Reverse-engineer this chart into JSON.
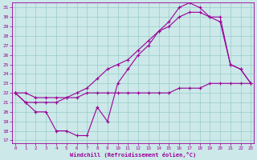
{
  "xlabel": "Windchill (Refroidissement éolien,°C)",
  "bg_color": "#cce8e8",
  "line_color": "#990099",
  "grid_color": "#99cccc",
  "ylim": [
    17,
    31
  ],
  "yticks": [
    17,
    18,
    19,
    20,
    21,
    22,
    23,
    24,
    25,
    26,
    27,
    28,
    29,
    30,
    31
  ],
  "xticks": [
    0,
    1,
    2,
    3,
    4,
    5,
    6,
    7,
    8,
    9,
    10,
    11,
    12,
    13,
    14,
    15,
    16,
    17,
    18,
    19,
    20,
    21,
    22,
    23
  ],
  "series1_x": [
    0,
    1,
    2,
    3,
    4,
    5,
    6,
    7,
    8,
    9,
    10,
    11,
    12,
    13,
    14,
    15,
    16,
    17,
    18,
    19,
    20,
    21,
    22,
    23
  ],
  "series1_y": [
    22.0,
    21.0,
    20.0,
    20.0,
    18.0,
    18.0,
    17.5,
    17.5,
    20.5,
    19.0,
    23.0,
    24.5,
    26.0,
    27.0,
    28.5,
    29.5,
    31.0,
    31.5,
    31.0,
    30.0,
    29.5,
    25.0,
    24.5,
    23.0
  ],
  "series2_x": [
    0,
    1,
    2,
    3,
    4,
    5,
    6,
    7,
    8,
    9,
    10,
    11,
    12,
    13,
    14,
    15,
    16,
    17,
    18,
    19,
    20,
    21,
    22,
    23
  ],
  "series2_y": [
    22.0,
    22.0,
    21.5,
    21.5,
    21.5,
    21.5,
    21.5,
    22.0,
    22.0,
    22.0,
    22.0,
    22.0,
    22.0,
    22.0,
    22.0,
    22.0,
    22.5,
    22.5,
    22.5,
    23.0,
    23.0,
    23.0,
    23.0,
    23.0
  ],
  "series3_x": [
    0,
    1,
    2,
    3,
    4,
    5,
    6,
    7,
    8,
    9,
    10,
    11,
    12,
    13,
    14,
    15,
    16,
    17,
    18,
    19,
    20,
    21,
    22,
    23
  ],
  "series3_y": [
    22.0,
    21.0,
    21.0,
    21.0,
    21.0,
    21.5,
    22.0,
    22.5,
    23.5,
    24.5,
    25.0,
    25.5,
    26.5,
    27.5,
    28.5,
    29.0,
    30.0,
    30.5,
    30.5,
    30.0,
    30.0,
    25.0,
    24.5,
    23.0
  ]
}
